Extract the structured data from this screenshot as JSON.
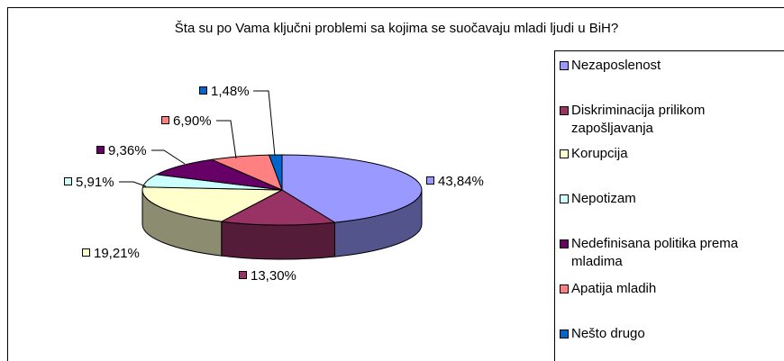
{
  "chart_data": {
    "type": "pie3d",
    "title": "Šta su po Vama ključni problemi sa kojima se suočavaju mladi ljudi u BiH?",
    "categories": [
      "Nezaposlenost",
      "Diskriminacija prilikom zapošljavanja",
      "Korupcija",
      "Nepotizam",
      "Nedefinisana politika prema mladima",
      "Apatija mladih",
      "Nešto drugo"
    ],
    "values": [
      43.84,
      13.3,
      19.21,
      5.91,
      9.36,
      6.9,
      1.48
    ],
    "value_labels": [
      "43,84%",
      "13,30%",
      "19,21%",
      "5,91%",
      "9,36%",
      "6,90%",
      "1,48%"
    ],
    "colors": [
      "#9999ff",
      "#993366",
      "#ffffcc",
      "#ccffff",
      "#660066",
      "#ff8080",
      "#0066cc"
    ],
    "legend": "right"
  }
}
